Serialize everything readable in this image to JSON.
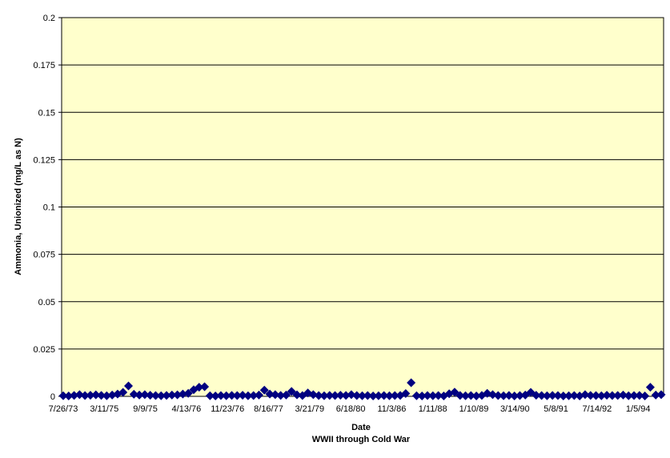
{
  "chart_data": {
    "type": "scatter",
    "xlabel": "Date",
    "subtitle": "WWII through Cold War",
    "ylabel": "Ammonia, Unionized (mg/L as N)",
    "ylim": [
      0,
      0.2
    ],
    "yticks": [
      0,
      0.025,
      0.05,
      0.075,
      0.1,
      0.125,
      0.15,
      0.175,
      0.2
    ],
    "ytick_labels": [
      "0",
      "0.025",
      "0.05",
      "0.075",
      "0.1",
      "0.125",
      "0.15",
      "0.175",
      "0.2"
    ],
    "xtick_labels": [
      "7/26/73",
      "3/11/75",
      "9/9/75",
      "4/13/76",
      "11/23/76",
      "8/16/77",
      "3/21/79",
      "6/18/80",
      "11/3/86",
      "1/11/88",
      "1/10/89",
      "3/14/90",
      "5/8/91",
      "7/14/92",
      "1/5/94"
    ],
    "grid": true,
    "legend": "none",
    "colors": {
      "plot_background": "#ffffcc",
      "marker": "#000080",
      "gridline": "#000000"
    },
    "marker": "diamond",
    "series": [
      {
        "values": [
          0.0003,
          0.0002,
          0.0005,
          0.0009,
          0.0004,
          0.0006,
          0.0008,
          0.0005,
          0.0003,
          0.0007,
          0.0012,
          0.0021,
          0.0055,
          0.0011,
          0.0007,
          0.0009,
          0.0006,
          0.0004,
          0.0003,
          0.0005,
          0.0007,
          0.0008,
          0.0012,
          0.0016,
          0.0035,
          0.0048,
          0.0051,
          0.0003,
          0.0002,
          0.0004,
          0.0003,
          0.0005,
          0.0004,
          0.0006,
          0.0003,
          0.0004,
          0.0007,
          0.0033,
          0.0012,
          0.0009,
          0.0005,
          0.0007,
          0.0026,
          0.0008,
          0.0004,
          0.0018,
          0.0009,
          0.0004,
          0.0003,
          0.0005,
          0.0004,
          0.0006,
          0.0005,
          0.0009,
          0.0004,
          0.0003,
          0.0004,
          0.0002,
          0.0003,
          0.0004,
          0.0003,
          0.0004,
          0.0005,
          0.0015,
          0.0072,
          0.0003,
          0.0002,
          0.0004,
          0.0003,
          0.0004,
          0.0002,
          0.0014,
          0.0022,
          0.0005,
          0.0003,
          0.0004,
          0.0002,
          0.0005,
          0.0016,
          0.0009,
          0.0004,
          0.0003,
          0.0005,
          0.0002,
          0.0004,
          0.0007,
          0.0021,
          0.0006,
          0.0004,
          0.0003,
          0.0005,
          0.0004,
          0.0002,
          0.0003,
          0.0004,
          0.0002,
          0.0009,
          0.0005,
          0.0004,
          0.0003,
          0.0006,
          0.0004,
          0.0005,
          0.0007,
          0.0003,
          0.0004,
          0.0005,
          0.0002,
          0.0048,
          0.0007,
          0.0009
        ]
      }
    ]
  }
}
